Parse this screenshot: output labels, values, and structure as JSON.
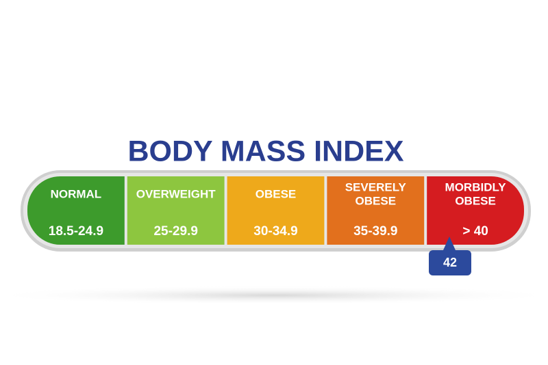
{
  "title": "BODY MASS INDEX",
  "segments": [
    {
      "label": [
        "NORMAL"
      ],
      "range": "18.5-24.9",
      "color": "#3d9b2c"
    },
    {
      "label": [
        "OVERWEIGHT"
      ],
      "range": "25-29.9",
      "color": "#8dc63f"
    },
    {
      "label": [
        "OBESE"
      ],
      "range": "30-34.9",
      "color": "#eea91b"
    },
    {
      "label": [
        "SEVERELY",
        "OBESE"
      ],
      "range": "35-39.9",
      "color": "#e2701d"
    },
    {
      "label": [
        "MORBIDLY",
        "OBESE"
      ],
      "range": "> 40",
      "color": "#d51c20"
    }
  ],
  "marker": {
    "label": "42",
    "color": "#2c4a9d"
  }
}
